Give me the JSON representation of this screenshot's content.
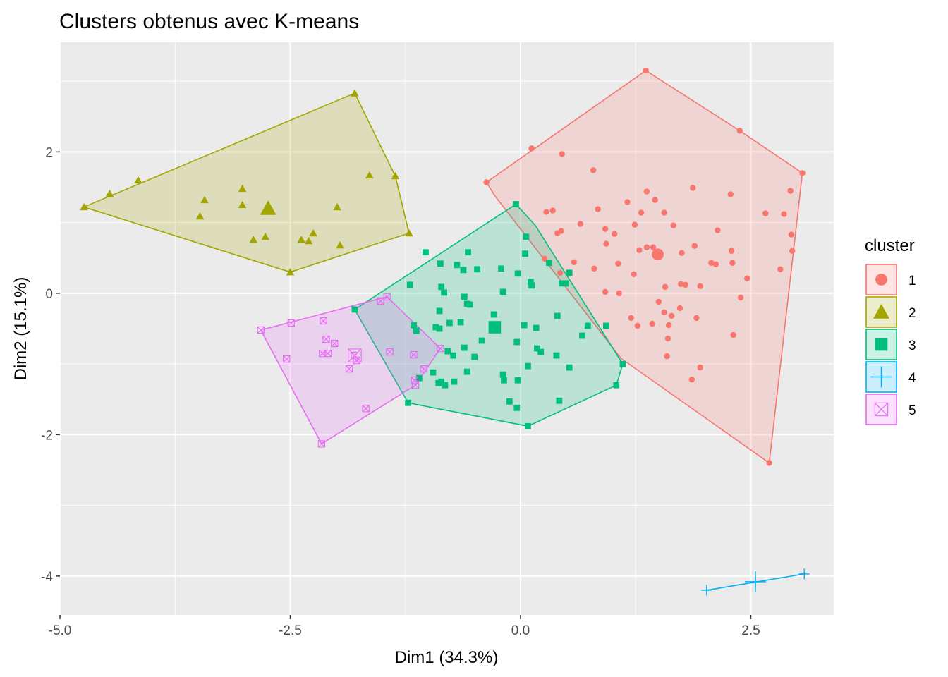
{
  "chart_data": {
    "type": "scatter",
    "title": "Clusters obtenus avec K-means",
    "xlabel": "Dim1 (34.3%)",
    "ylabel": "Dim2 (15.1%)",
    "xlim": [
      -5.0,
      3.4
    ],
    "ylim": [
      -4.55,
      3.55
    ],
    "x_ticks": [
      -5.0,
      -2.5,
      0.0,
      2.5
    ],
    "x_tick_labels": [
      "-5.0",
      "-2.5",
      "0.0",
      "2.5"
    ],
    "y_ticks": [
      -4,
      -2,
      0,
      2
    ],
    "y_tick_labels": [
      "-4",
      "-2",
      "0",
      "2"
    ],
    "grid": true,
    "legend": {
      "title": "cluster",
      "position": "right"
    },
    "series": [
      {
        "name": "1",
        "color": "#F8766D",
        "shape": "circle",
        "hull": [
          [
            1.36,
            3.15
          ],
          [
            2.38,
            2.3
          ],
          [
            3.06,
            1.7
          ],
          [
            2.7,
            -2.4
          ],
          [
            1.09,
            -0.92
          ],
          [
            -0.28,
            1.38
          ],
          [
            -0.37,
            1.57
          ]
        ],
        "center": [
          1.49,
          0.55
        ],
        "points": [
          [
            1.36,
            3.15
          ],
          [
            2.38,
            2.3
          ],
          [
            3.06,
            1.7
          ],
          [
            2.7,
            -2.4
          ],
          [
            -0.37,
            1.57
          ],
          [
            0.12,
            2.05
          ],
          [
            0.45,
            1.97
          ],
          [
            0.79,
            1.74
          ],
          [
            1.87,
            1.49
          ],
          [
            2.28,
            1.4
          ],
          [
            2.93,
            1.45
          ],
          [
            1.37,
            1.44
          ],
          [
            1.46,
            1.32
          ],
          [
            1.16,
            1.29
          ],
          [
            0.84,
            1.19
          ],
          [
            1.31,
            1.14
          ],
          [
            1.56,
            1.14
          ],
          [
            2.66,
            1.13
          ],
          [
            2.86,
            1.12
          ],
          [
            0.28,
            1.15
          ],
          [
            0.35,
            1.17
          ],
          [
            0.65,
            0.98
          ],
          [
            1.24,
            0.97
          ],
          [
            1.66,
            0.96
          ],
          [
            0.4,
            0.85
          ],
          [
            0.44,
            0.88
          ],
          [
            0.92,
            0.91
          ],
          [
            2.14,
            0.89
          ],
          [
            1.02,
            0.84
          ],
          [
            2.94,
            0.83
          ],
          [
            1.44,
            0.65
          ],
          [
            1.89,
            0.67
          ],
          [
            1.29,
            0.61
          ],
          [
            1.37,
            0.65
          ],
          [
            0.93,
            0.7
          ],
          [
            2.29,
            0.6
          ],
          [
            2.95,
            0.6
          ],
          [
            1.48,
            0.55
          ],
          [
            1.75,
            0.57
          ],
          [
            0.26,
            0.49
          ],
          [
            2.3,
            0.43
          ],
          [
            2.07,
            0.43
          ],
          [
            2.12,
            0.41
          ],
          [
            1.06,
            0.42
          ],
          [
            0.58,
            0.44
          ],
          [
            0.8,
            0.35
          ],
          [
            1.23,
            0.27
          ],
          [
            2.82,
            0.34
          ],
          [
            2.46,
            0.21
          ],
          [
            0.43,
            0.29
          ],
          [
            1.74,
            0.13
          ],
          [
            1.79,
            0.12
          ],
          [
            1.57,
            0.09
          ],
          [
            1.95,
            0.1
          ],
          [
            0.92,
            0.02
          ],
          [
            1.07,
            0.0
          ],
          [
            2.39,
            -0.06
          ],
          [
            1.5,
            -0.12
          ],
          [
            1.73,
            -0.21
          ],
          [
            1.56,
            -0.27
          ],
          [
            1.64,
            -0.32
          ],
          [
            1.91,
            -0.35
          ],
          [
            1.2,
            -0.35
          ],
          [
            1.43,
            -0.43
          ],
          [
            1.27,
            -0.46
          ],
          [
            1.61,
            -0.45
          ],
          [
            2.31,
            -0.59
          ],
          [
            1.6,
            -0.64
          ],
          [
            1.59,
            -0.89
          ],
          [
            1.95,
            -1.05
          ],
          [
            1.86,
            -1.22
          ]
        ]
      },
      {
        "name": "2",
        "color": "#A3A500",
        "shape": "triangle",
        "hull": [
          [
            -1.8,
            2.83
          ],
          [
            -1.36,
            1.66
          ],
          [
            -1.21,
            0.85
          ],
          [
            -2.5,
            0.3
          ],
          [
            -4.74,
            1.22
          ]
        ],
        "center": [
          -2.74,
          1.2
        ],
        "points": [
          [
            -1.8,
            2.83
          ],
          [
            -1.36,
            1.66
          ],
          [
            -1.21,
            0.85
          ],
          [
            -2.5,
            0.3
          ],
          [
            -4.74,
            1.22
          ],
          [
            -4.46,
            1.41
          ],
          [
            -4.15,
            1.6
          ],
          [
            -1.64,
            1.67
          ],
          [
            -3.02,
            1.48
          ],
          [
            -3.43,
            1.32
          ],
          [
            -3.02,
            1.25
          ],
          [
            -1.99,
            1.22
          ],
          [
            -2.74,
            1.2
          ],
          [
            -3.48,
            1.09
          ],
          [
            -2.25,
            0.85
          ],
          [
            -2.77,
            0.8
          ],
          [
            -2.9,
            0.76
          ],
          [
            -2.38,
            0.76
          ],
          [
            -2.3,
            0.74
          ],
          [
            -1.96,
            0.68
          ]
        ]
      },
      {
        "name": "3",
        "color": "#00BF7D",
        "shape": "square",
        "hull": [
          [
            -0.05,
            1.26
          ],
          [
            0.16,
            0.96
          ],
          [
            1.11,
            -1.0
          ],
          [
            1.04,
            -1.3
          ],
          [
            0.08,
            -1.88
          ],
          [
            -1.22,
            -1.55
          ],
          [
            -1.8,
            -0.23
          ]
        ],
        "center": [
          -0.28,
          -0.48
        ],
        "points": [
          [
            -0.05,
            1.26
          ],
          [
            0.06,
            0.8
          ],
          [
            -1.03,
            0.58
          ],
          [
            -0.57,
            0.58
          ],
          [
            0.05,
            0.56
          ],
          [
            -0.87,
            0.42
          ],
          [
            -0.69,
            0.4
          ],
          [
            -0.62,
            0.33
          ],
          [
            -0.47,
            0.34
          ],
          [
            -0.21,
            0.35
          ],
          [
            -0.03,
            0.28
          ],
          [
            0.31,
            0.43
          ],
          [
            0.53,
            0.29
          ],
          [
            0.11,
            0.16
          ],
          [
            0.12,
            0.11
          ],
          [
            0.45,
            0.14
          ],
          [
            0.49,
            0.14
          ],
          [
            -1.2,
            0.12
          ],
          [
            -0.86,
            0.09
          ],
          [
            -0.19,
            0.02
          ],
          [
            -0.83,
            0.01
          ],
          [
            -0.61,
            -0.05
          ],
          [
            -0.58,
            -0.15
          ],
          [
            -0.55,
            -0.16
          ],
          [
            -0.88,
            -0.25
          ],
          [
            -0.29,
            -0.3
          ],
          [
            0.4,
            -0.32
          ],
          [
            0.04,
            -0.45
          ],
          [
            0.17,
            -0.49
          ],
          [
            -0.77,
            -0.42
          ],
          [
            -0.65,
            -0.41
          ],
          [
            -0.92,
            -0.48
          ],
          [
            -0.88,
            -0.5
          ],
          [
            -0.28,
            -0.48
          ],
          [
            0.73,
            -0.46
          ],
          [
            0.93,
            -0.46
          ],
          [
            -1.13,
            -0.53
          ],
          [
            -0.42,
            -0.67
          ],
          [
            -0.04,
            -0.69
          ],
          [
            0.18,
            -0.78
          ],
          [
            0.22,
            -0.83
          ],
          [
            0.67,
            -0.6
          ],
          [
            -0.61,
            -0.77
          ],
          [
            -0.79,
            -0.82
          ],
          [
            -0.5,
            -0.9
          ],
          [
            -0.73,
            -0.88
          ],
          [
            0.39,
            -0.88
          ],
          [
            -0.58,
            -1.11
          ],
          [
            -1.1,
            -1.2
          ],
          [
            -0.95,
            -1.12
          ],
          [
            -0.86,
            -1.25
          ],
          [
            -0.82,
            -1.3
          ],
          [
            -0.89,
            -1.27
          ],
          [
            -0.03,
            -1.23
          ],
          [
            0.53,
            -1.05
          ],
          [
            0.08,
            -1.03
          ],
          [
            -0.72,
            -1.25
          ],
          [
            -0.18,
            -1.23
          ],
          [
            0.42,
            -1.52
          ],
          [
            -0.04,
            -1.62
          ],
          [
            -0.12,
            -1.53
          ],
          [
            -1.16,
            -0.45
          ],
          [
            1.11,
            -1.0
          ],
          [
            1.04,
            -1.3
          ],
          [
            0.08,
            -1.88
          ],
          [
            -1.22,
            -1.55
          ],
          [
            -1.8,
            -0.23
          ],
          [
            -0.19,
            -1.15
          ]
        ]
      },
      {
        "name": "4",
        "color": "#00B0F6",
        "shape": "cross",
        "hull": [
          [
            2.02,
            -4.2
          ],
          [
            3.08,
            -3.97
          ]
        ],
        "center": [
          2.55,
          -4.08
        ],
        "points": [
          [
            2.02,
            -4.2
          ],
          [
            2.55,
            -4.08
          ],
          [
            3.08,
            -3.97
          ]
        ]
      },
      {
        "name": "5",
        "color": "#E76BF3",
        "shape": "boxcross",
        "hull": [
          [
            -1.45,
            -0.05
          ],
          [
            -0.87,
            -0.78
          ],
          [
            -1.14,
            -1.3
          ],
          [
            -2.16,
            -2.13
          ],
          [
            -2.82,
            -0.52
          ]
        ],
        "center": [
          -1.8,
          -0.88
        ],
        "points": [
          [
            -1.45,
            -0.05
          ],
          [
            -1.52,
            -0.11
          ],
          [
            -0.87,
            -0.78
          ],
          [
            -2.82,
            -0.52
          ],
          [
            -2.49,
            -0.42
          ],
          [
            -2.14,
            -0.39
          ],
          [
            -2.11,
            -0.65
          ],
          [
            -2.02,
            -0.71
          ],
          [
            -1.8,
            -0.88
          ],
          [
            -2.15,
            -0.85
          ],
          [
            -2.09,
            -0.85
          ],
          [
            -1.78,
            -0.95
          ],
          [
            -2.54,
            -0.93
          ],
          [
            -1.42,
            -0.83
          ],
          [
            -1.16,
            -0.87
          ],
          [
            -1.05,
            -1.07
          ],
          [
            -1.86,
            -1.07
          ],
          [
            -1.14,
            -1.3
          ],
          [
            -1.15,
            -1.23
          ],
          [
            -1.68,
            -1.63
          ],
          [
            -2.16,
            -2.13
          ]
        ]
      }
    ]
  }
}
